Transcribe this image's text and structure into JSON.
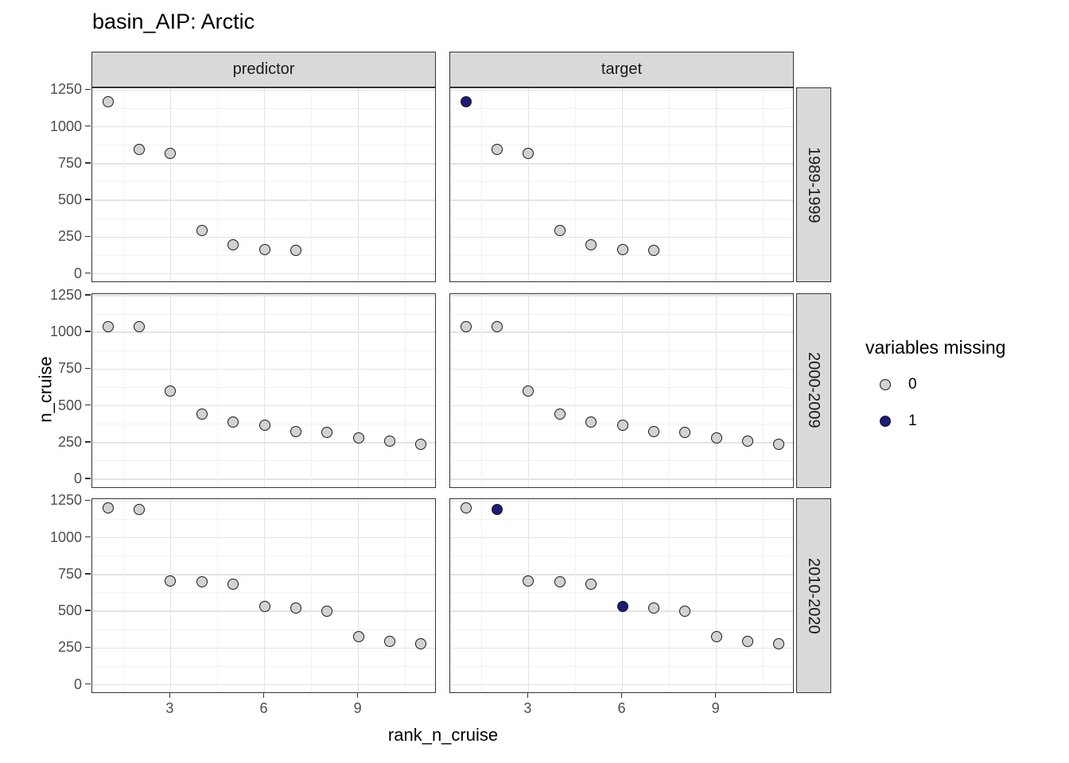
{
  "title": "basin_AIP: Arctic",
  "facet_cols": [
    {
      "label": "predictor"
    },
    {
      "label": "target"
    }
  ],
  "facet_rows": [
    {
      "label": "1989-1999"
    },
    {
      "label": "2000-2009"
    },
    {
      "label": "2010-2020"
    }
  ],
  "x_axis": {
    "label": "rank_n_cruise",
    "ticks": [
      3,
      6,
      9
    ],
    "domain": [
      0.5,
      11.5
    ]
  },
  "y_axis": {
    "label": "n_cruise",
    "ticks": [
      0,
      250,
      500,
      750,
      1000,
      1250
    ],
    "domain": [
      -62,
      1263
    ]
  },
  "grid": {
    "x_major": [
      3,
      6,
      9
    ],
    "x_minor": [
      1.5,
      4.5,
      7.5,
      10.5
    ],
    "y_major": [
      0,
      250,
      500,
      750,
      1000,
      1250
    ],
    "y_minor": [
      125,
      375,
      625,
      875,
      1125
    ]
  },
  "legend": {
    "title": "variables missing",
    "items": [
      {
        "label": "0",
        "value": 0,
        "color": "#d2d2d2"
      },
      {
        "label": "1",
        "value": 1,
        "color": "#1b1b78"
      }
    ]
  },
  "colors": {
    "point_missing_0": "#d2d2d2",
    "point_missing_1": "#1b1b78",
    "point_stroke": "#1a1a1a",
    "strip_fill": "#d9d9d9",
    "panel_border": "#333333",
    "grid_major": "#e3e3e3",
    "grid_minor": "#f1f1f1",
    "axis_text": "#4d4d4d"
  },
  "chart_data": {
    "type": "scatter",
    "point_format": [
      "rank_n_cruise",
      "n_cruise",
      "variables_missing"
    ],
    "x_domain": [
      0.5,
      11.5
    ],
    "y_domain": [
      -62,
      1263
    ],
    "grid": true,
    "legend_position": "right",
    "series": [
      {
        "row": "1989-1999",
        "col": "predictor",
        "points": [
          [
            1,
            1170,
            0
          ],
          [
            2,
            845,
            0
          ],
          [
            3,
            820,
            0
          ],
          [
            4,
            295,
            0
          ],
          [
            5,
            200,
            0
          ],
          [
            6,
            165,
            0
          ],
          [
            7,
            160,
            0
          ]
        ]
      },
      {
        "row": "1989-1999",
        "col": "target",
        "points": [
          [
            1,
            1170,
            1
          ],
          [
            2,
            845,
            0
          ],
          [
            3,
            820,
            0
          ],
          [
            4,
            295,
            0
          ],
          [
            5,
            200,
            0
          ],
          [
            6,
            165,
            0
          ],
          [
            7,
            160,
            0
          ]
        ]
      },
      {
        "row": "2000-2009",
        "col": "predictor",
        "points": [
          [
            1,
            1040,
            0
          ],
          [
            2,
            1040,
            0
          ],
          [
            3,
            600,
            0
          ],
          [
            4,
            445,
            0
          ],
          [
            5,
            390,
            0
          ],
          [
            6,
            370,
            0
          ],
          [
            7,
            325,
            0
          ],
          [
            8,
            320,
            0
          ],
          [
            9,
            280,
            0
          ],
          [
            10,
            258,
            0
          ],
          [
            11,
            240,
            0
          ]
        ]
      },
      {
        "row": "2000-2009",
        "col": "target",
        "points": [
          [
            1,
            1040,
            0
          ],
          [
            2,
            1040,
            0
          ],
          [
            3,
            600,
            0
          ],
          [
            4,
            445,
            0
          ],
          [
            5,
            390,
            0
          ],
          [
            6,
            370,
            0
          ],
          [
            7,
            325,
            0
          ],
          [
            8,
            320,
            0
          ],
          [
            9,
            280,
            0
          ],
          [
            10,
            258,
            0
          ],
          [
            11,
            240,
            0
          ]
        ]
      },
      {
        "row": "2010-2020",
        "col": "predictor",
        "points": [
          [
            1,
            1205,
            0
          ],
          [
            2,
            1190,
            0
          ],
          [
            3,
            705,
            0
          ],
          [
            4,
            700,
            0
          ],
          [
            5,
            685,
            0
          ],
          [
            6,
            535,
            0
          ],
          [
            7,
            520,
            0
          ],
          [
            8,
            500,
            0
          ],
          [
            9,
            330,
            0
          ],
          [
            10,
            295,
            0
          ],
          [
            11,
            278,
            0
          ]
        ]
      },
      {
        "row": "2010-2020",
        "col": "target",
        "points": [
          [
            1,
            1205,
            0
          ],
          [
            2,
            1190,
            1
          ],
          [
            3,
            705,
            0
          ],
          [
            4,
            700,
            0
          ],
          [
            5,
            685,
            0
          ],
          [
            6,
            535,
            1
          ],
          [
            7,
            520,
            0
          ],
          [
            8,
            500,
            0
          ],
          [
            9,
            330,
            0
          ],
          [
            10,
            295,
            0
          ],
          [
            11,
            278,
            0
          ]
        ]
      }
    ]
  }
}
